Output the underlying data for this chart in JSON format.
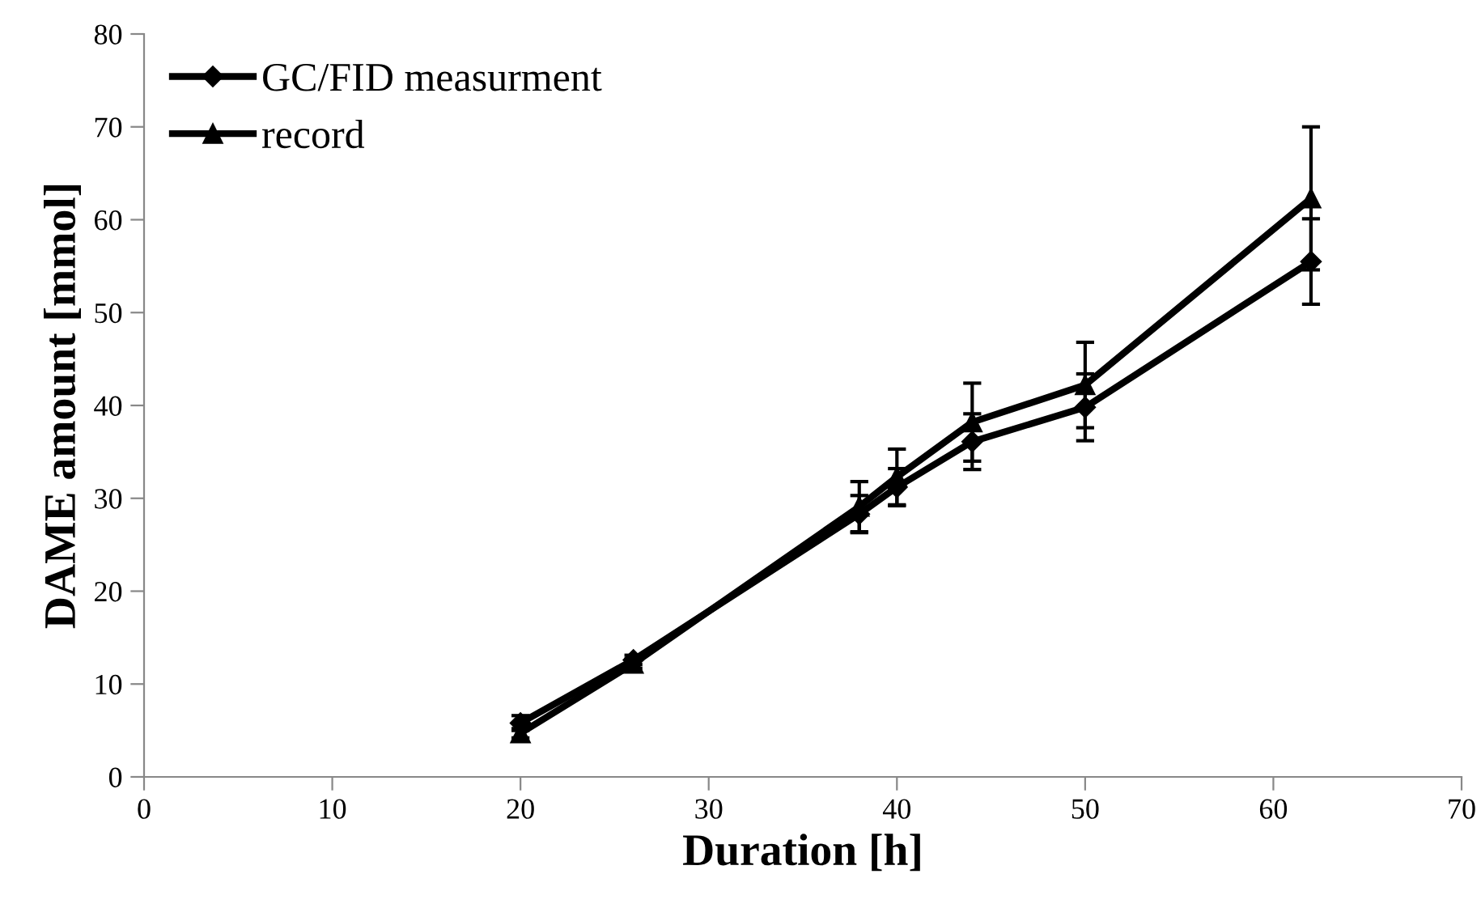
{
  "chart_data": {
    "type": "line",
    "xlabel": "Duration [h]",
    "ylabel": "DAME amount [mmol]",
    "xlim": [
      0,
      70
    ],
    "xticks": [
      0,
      10,
      20,
      30,
      40,
      50,
      60,
      70
    ],
    "ylim": [
      0,
      80
    ],
    "yticks": [
      0,
      10,
      20,
      30,
      40,
      50,
      60,
      70,
      80
    ],
    "grid": false,
    "legend": "top left",
    "line_style": "solid",
    "x": [
      20,
      26,
      38,
      40,
      44,
      50,
      62
    ],
    "series": [
      {
        "name": "GC/FID measurment",
        "color": "#000000",
        "marker": "diamond",
        "values": [
          5.8,
          12.6,
          28.3,
          31.2,
          36.1,
          39.8,
          55.5
        ],
        "errors": [
          0.8,
          0.5,
          2,
          2,
          3,
          3.6,
          4.6
        ]
      },
      {
        "name": "record",
        "color": "#000000",
        "marker": "triangle",
        "values": [
          4.7,
          12.2,
          29.1,
          32.3,
          38.2,
          42.2,
          62.3
        ],
        "errors": [
          0.5,
          0.5,
          2.7,
          3,
          4.2,
          4.6,
          7.7
        ]
      }
    ]
  }
}
